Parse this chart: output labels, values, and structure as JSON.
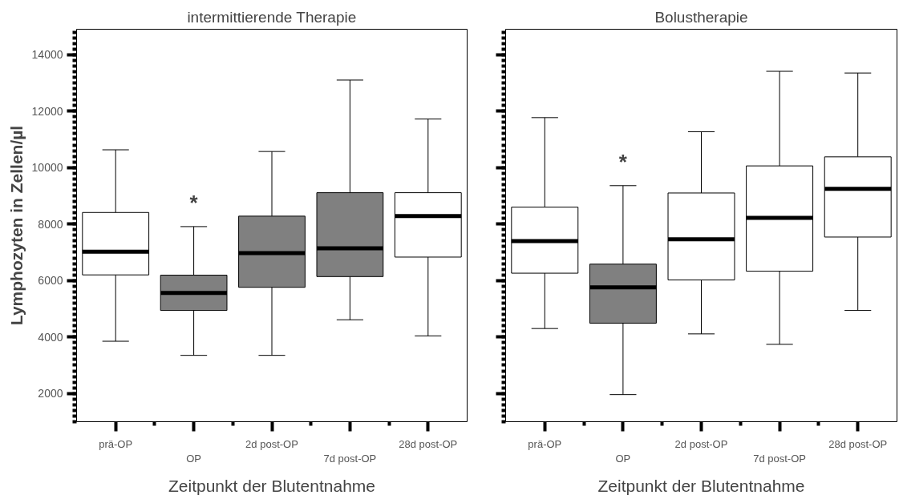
{
  "chart_data": [
    {
      "type": "box",
      "title": "intermittierende Therapie",
      "xlabel": "Zeitpunkt der Blutentnahme",
      "ylabel": "Lymphozyten in Zellen/µl",
      "categories": [
        "prä-OP",
        "OP",
        "2d post-OP",
        "7d post-OP",
        "28d post-OP"
      ],
      "series": [
        {
          "colors": [
            "#ffffff",
            "#808080",
            "#808080",
            "#808080",
            "#ffffff"
          ],
          "boxes": [
            {
              "low": 3850,
              "q1": 6200,
              "median": 7020,
              "q3": 8410,
              "high": 10630
            },
            {
              "low": 3350,
              "q1": 4940,
              "median": 5560,
              "q3": 6190,
              "high": 7910
            },
            {
              "low": 3350,
              "q1": 5760,
              "median": 6970,
              "q3": 8280,
              "high": 10570
            },
            {
              "low": 4610,
              "q1": 6140,
              "median": 7140,
              "q3": 9110,
              "high": 13100
            },
            {
              "low": 4040,
              "q1": 6830,
              "median": 8280,
              "q3": 9110,
              "high": 11720
            }
          ]
        }
      ],
      "ylim": [
        1000,
        14900
      ],
      "yticks": [
        2000,
        4000,
        6000,
        8000,
        10000,
        12000,
        14000
      ],
      "grid": false,
      "annotations": [
        "*"
      ]
    },
    {
      "type": "box",
      "title": "Bolustherapie",
      "xlabel": "Zeitpunkt der Blutentnahme",
      "categories": [
        "prä-OP",
        "OP",
        "2d post-OP",
        "7d post-OP",
        "28d post-OP"
      ],
      "series": [
        {
          "colors": [
            "#ffffff",
            "#808080",
            "#ffffff",
            "#ffffff",
            "#ffffff"
          ],
          "boxes": [
            {
              "low": 4300,
              "q1": 6260,
              "median": 7400,
              "q3": 8600,
              "high": 11770
            },
            {
              "low": 1960,
              "q1": 4490,
              "median": 5760,
              "q3": 6580,
              "high": 9360
            },
            {
              "low": 4110,
              "q1": 6020,
              "median": 7460,
              "q3": 9100,
              "high": 11270
            },
            {
              "low": 3740,
              "q1": 6330,
              "median": 8220,
              "q3": 10060,
              "high": 13410
            },
            {
              "low": 4940,
              "q1": 7540,
              "median": 9250,
              "q3": 10380,
              "high": 13350
            }
          ]
        }
      ],
      "ylim": [
        1000,
        14900
      ],
      "yticks": [
        2000,
        4000,
        6000,
        8000,
        10000,
        12000,
        14000
      ],
      "grid": false,
      "tick_labels": "x",
      "annotations": [
        "*"
      ]
    }
  ]
}
